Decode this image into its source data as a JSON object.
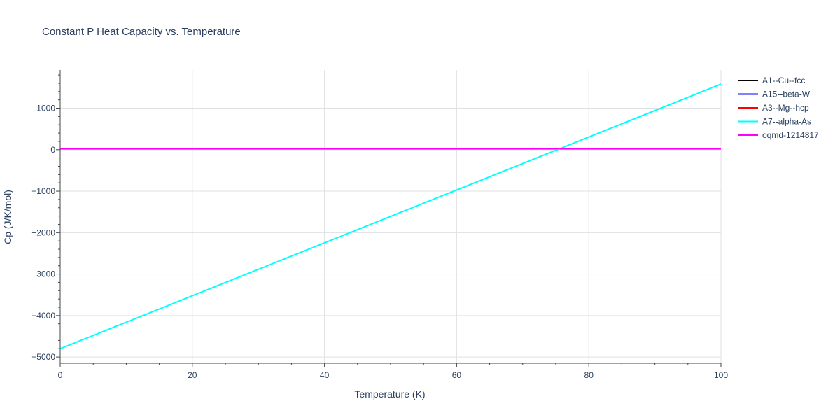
{
  "chart_data": {
    "type": "line",
    "title": "Constant P Heat Capacity vs. Temperature",
    "xlabel": "Temperature (K)",
    "ylabel": "Cp (J/K/mol)",
    "xlim": [
      0,
      100
    ],
    "ylim": [
      -5150,
      1920
    ],
    "xticks": [
      0,
      20,
      40,
      60,
      80,
      100
    ],
    "yticks": [
      -5000,
      -4000,
      -3000,
      -2000,
      -1000,
      0,
      1000
    ],
    "ytick_labels": [
      "−5000",
      "−4000",
      "−3000",
      "−2000",
      "−1000",
      "0",
      "1000"
    ],
    "grid": true,
    "legend_position": "top-right",
    "series": [
      {
        "name": "A1--Cu--fcc",
        "color": "#000000",
        "x": [
          0,
          100
        ],
        "y": [
          25,
          25
        ]
      },
      {
        "name": "A15--beta-W",
        "color": "#0000ff",
        "x": [
          0,
          100
        ],
        "y": [
          25,
          25
        ]
      },
      {
        "name": "A3--Mg--hcp",
        "color": "#ff0000",
        "x": [
          0,
          100
        ],
        "y": [
          25,
          25
        ]
      },
      {
        "name": "A7--alpha-As",
        "color": "#00ffff",
        "x": [
          0,
          100
        ],
        "y": [
          -4800,
          1580
        ]
      },
      {
        "name": "oqmd-1214817",
        "color": "#ff00ff",
        "x": [
          0,
          100
        ],
        "y": [
          25,
          25
        ]
      }
    ]
  }
}
